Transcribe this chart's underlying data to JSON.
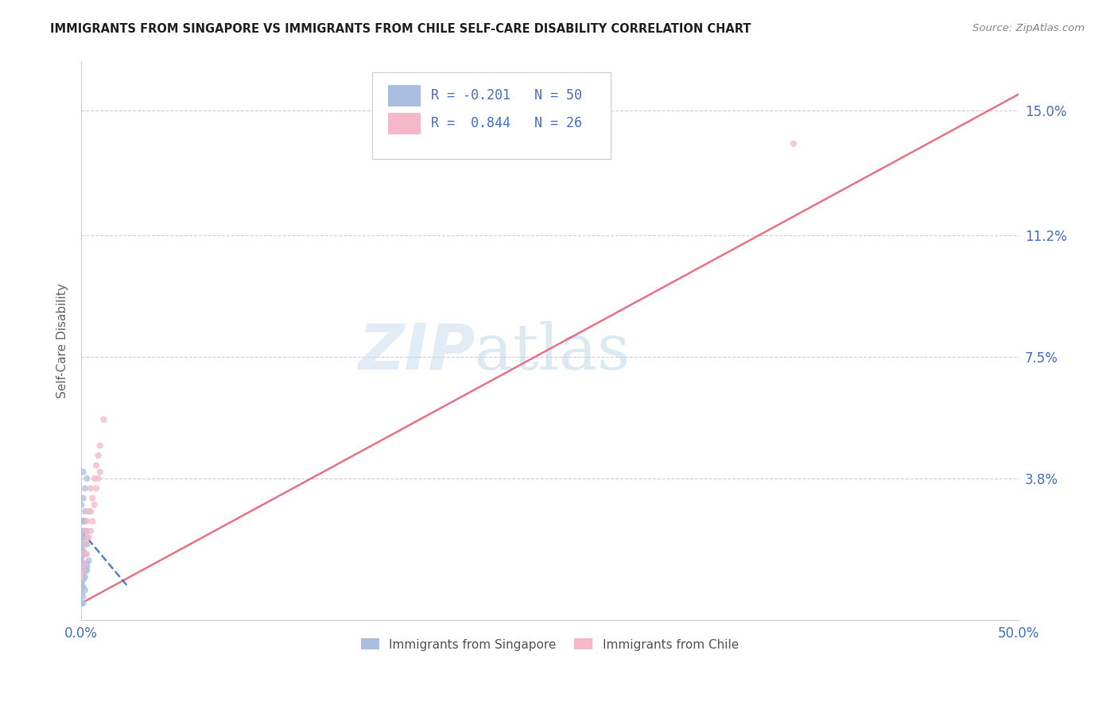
{
  "title": "IMMIGRANTS FROM SINGAPORE VS IMMIGRANTS FROM CHILE SELF-CARE DISABILITY CORRELATION CHART",
  "source": "Source: ZipAtlas.com",
  "ylabel": "Self-Care Disability",
  "xlim": [
    0.0,
    0.5
  ],
  "ylim": [
    -0.005,
    0.165
  ],
  "ytick_positions": [
    0.0,
    0.038,
    0.075,
    0.112,
    0.15
  ],
  "ytick_labels_right": [
    "",
    "3.8%",
    "7.5%",
    "11.2%",
    "15.0%"
  ],
  "grid_color": "#d0d0d0",
  "background_color": "#ffffff",
  "singapore_color": "#aabfdf",
  "chile_color": "#f5b8c8",
  "singapore_line_color": "#4472c4",
  "chile_line_color": "#e8637a",
  "R_singapore": -0.201,
  "N_singapore": 50,
  "R_chile": 0.844,
  "N_chile": 26,
  "watermark_zip": "ZIP",
  "watermark_atlas": "atlas",
  "sg_x": [
    0.0,
    0.0,
    0.0,
    0.0,
    0.0,
    0.0,
    0.0,
    0.0,
    0.0,
    0.0,
    0.001,
    0.001,
    0.001,
    0.001,
    0.001,
    0.001,
    0.001,
    0.001,
    0.001,
    0.001,
    0.002,
    0.002,
    0.002,
    0.002,
    0.002,
    0.002,
    0.003,
    0.003,
    0.003,
    0.003,
    0.0,
    0.001,
    0.0,
    0.001,
    0.002,
    0.0,
    0.001,
    0.002,
    0.0,
    0.001,
    0.002,
    0.003,
    0.001,
    0.0,
    0.001,
    0.002,
    0.0,
    0.001,
    0.003,
    0.004
  ],
  "sg_y": [
    0.0,
    0.005,
    0.008,
    0.01,
    0.012,
    0.013,
    0.015,
    0.016,
    0.018,
    0.02,
    0.0,
    0.005,
    0.008,
    0.01,
    0.012,
    0.015,
    0.018,
    0.02,
    0.022,
    0.025,
    0.008,
    0.01,
    0.015,
    0.018,
    0.022,
    0.025,
    0.01,
    0.012,
    0.018,
    0.022,
    0.003,
    0.007,
    0.014,
    0.016,
    0.02,
    0.022,
    0.025,
    0.028,
    0.03,
    0.032,
    0.035,
    0.038,
    0.04,
    0.0,
    0.002,
    0.004,
    0.006,
    0.009,
    0.011,
    0.013
  ],
  "ch_x": [
    0.0,
    0.001,
    0.001,
    0.002,
    0.002,
    0.002,
    0.003,
    0.003,
    0.003,
    0.004,
    0.004,
    0.005,
    0.005,
    0.005,
    0.006,
    0.006,
    0.007,
    0.007,
    0.008,
    0.008,
    0.009,
    0.009,
    0.01,
    0.01,
    0.012,
    0.38
  ],
  "ch_y": [
    0.008,
    0.01,
    0.015,
    0.012,
    0.018,
    0.022,
    0.015,
    0.02,
    0.025,
    0.02,
    0.028,
    0.022,
    0.028,
    0.035,
    0.025,
    0.032,
    0.03,
    0.038,
    0.035,
    0.042,
    0.038,
    0.045,
    0.04,
    0.048,
    0.056,
    0.14
  ],
  "sg_line_x": [
    0.0,
    0.025
  ],
  "sg_line_y": [
    0.022,
    0.005
  ],
  "ch_line_x": [
    0.0,
    0.5
  ],
  "ch_line_y": [
    0.0,
    0.155
  ]
}
